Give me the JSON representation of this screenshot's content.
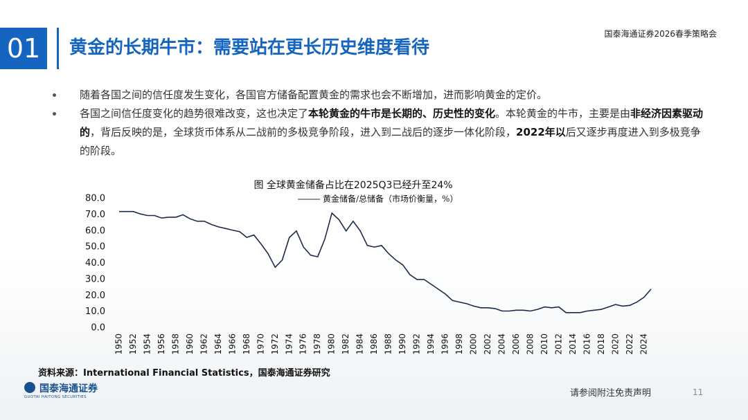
{
  "header": {
    "number": "01",
    "title": "黄金的长期牛市：需要站在更长历史维度看待",
    "event": "国泰海通证券2026春季策略会"
  },
  "bullets": [
    [
      {
        "text": "随着各国之间的信任度发生变化，各国官方储备配置黄金的需求也会不断增加，进而影响黄金的定价。",
        "bold": false
      }
    ],
    [
      {
        "text": "各国之间信任度变化的趋势很难改变，这也决定了",
        "bold": false
      },
      {
        "text": "本轮黄金的牛市是长期的、历史性的变化",
        "bold": true
      },
      {
        "text": "。本轮黄金的牛市，主要是由",
        "bold": false
      },
      {
        "text": "非经济因素驱动的",
        "bold": true
      },
      {
        "text": "，背后反映的是，全球货币体系从二战前的多极竞争阶段，进入到二战后的逐步一体化阶段，",
        "bold": false
      },
      {
        "text": "2022年以",
        "bold": true
      },
      {
        "text": "后又逐步再度进入到多极竞争的阶段。",
        "bold": false
      }
    ]
  ],
  "chart_data": {
    "type": "line",
    "title": "图 全球黄金储备占比在2025Q3已经升至24%",
    "x": [
      1950,
      1951,
      1952,
      1953,
      1954,
      1955,
      1956,
      1957,
      1958,
      1959,
      1960,
      1961,
      1962,
      1963,
      1964,
      1965,
      1966,
      1967,
      1968,
      1969,
      1970,
      1971,
      1972,
      1973,
      1974,
      1975,
      1976,
      1977,
      1978,
      1979,
      1980,
      1981,
      1982,
      1983,
      1984,
      1985,
      1986,
      1987,
      1988,
      1989,
      1990,
      1991,
      1992,
      1993,
      1994,
      1995,
      1996,
      1997,
      1998,
      1999,
      2000,
      2001,
      2002,
      2003,
      2004,
      2005,
      2006,
      2007,
      2008,
      2009,
      2010,
      2011,
      2012,
      2013,
      2014,
      2015,
      2016,
      2017,
      2018,
      2019,
      2020,
      2021,
      2022,
      2023,
      2024,
      2025
    ],
    "series": [
      {
        "name": "黄金储备/总储备（市场价衡量，%）",
        "color": "#1b2a4a",
        "values": [
          72,
          72,
          72,
          70.5,
          69.5,
          69.5,
          68,
          68.5,
          68.5,
          70,
          67.5,
          66,
          66,
          64,
          62.5,
          61.5,
          60.5,
          59.5,
          56,
          57.5,
          52,
          46,
          37.5,
          42,
          56,
          60,
          50,
          45,
          44,
          55,
          71,
          67,
          60,
          66,
          60,
          51,
          50,
          51,
          46,
          42,
          39,
          33,
          30,
          30,
          27,
          24,
          21,
          17,
          16,
          15,
          13.5,
          12.5,
          12.5,
          12,
          10.5,
          10.5,
          11,
          11,
          10.5,
          11.5,
          13,
          12.5,
          13,
          9.5,
          9.5,
          9.5,
          10.5,
          11,
          11.5,
          13,
          14.5,
          13.5,
          14,
          16,
          19,
          24
        ]
      }
    ],
    "xlim": [
      1950,
      2025
    ],
    "xticks": [
      1950,
      1952,
      1954,
      1956,
      1958,
      1960,
      1962,
      1964,
      1966,
      1968,
      1970,
      1972,
      1974,
      1976,
      1978,
      1980,
      1982,
      1984,
      1986,
      1988,
      1990,
      1992,
      1994,
      1996,
      1998,
      2000,
      2002,
      2004,
      2006,
      2008,
      2010,
      2012,
      2014,
      2016,
      2018,
      2020,
      2022,
      2024
    ],
    "ylim": [
      0,
      80
    ],
    "yticks": [
      {
        "value": 0,
        "label": "0.0"
      },
      {
        "value": 10,
        "label": "10.0"
      },
      {
        "value": 20,
        "label": "20.0"
      },
      {
        "value": 30,
        "label": "30.0"
      },
      {
        "value": 40,
        "label": "40.0"
      },
      {
        "value": 50,
        "label": "50.0"
      },
      {
        "value": 60,
        "label": "60.0"
      },
      {
        "value": 70,
        "label": "70.0"
      },
      {
        "value": 80,
        "label": "80.0"
      }
    ],
    "grid": false
  },
  "source": "资料来源：International  Financial Statistics，国泰海通证券研究",
  "logo": {
    "name": "国泰海通证券",
    "english": "GUOTAI HAITONG SECURITIES"
  },
  "disclaimer": "请参阅附注免责声明",
  "page": "11"
}
